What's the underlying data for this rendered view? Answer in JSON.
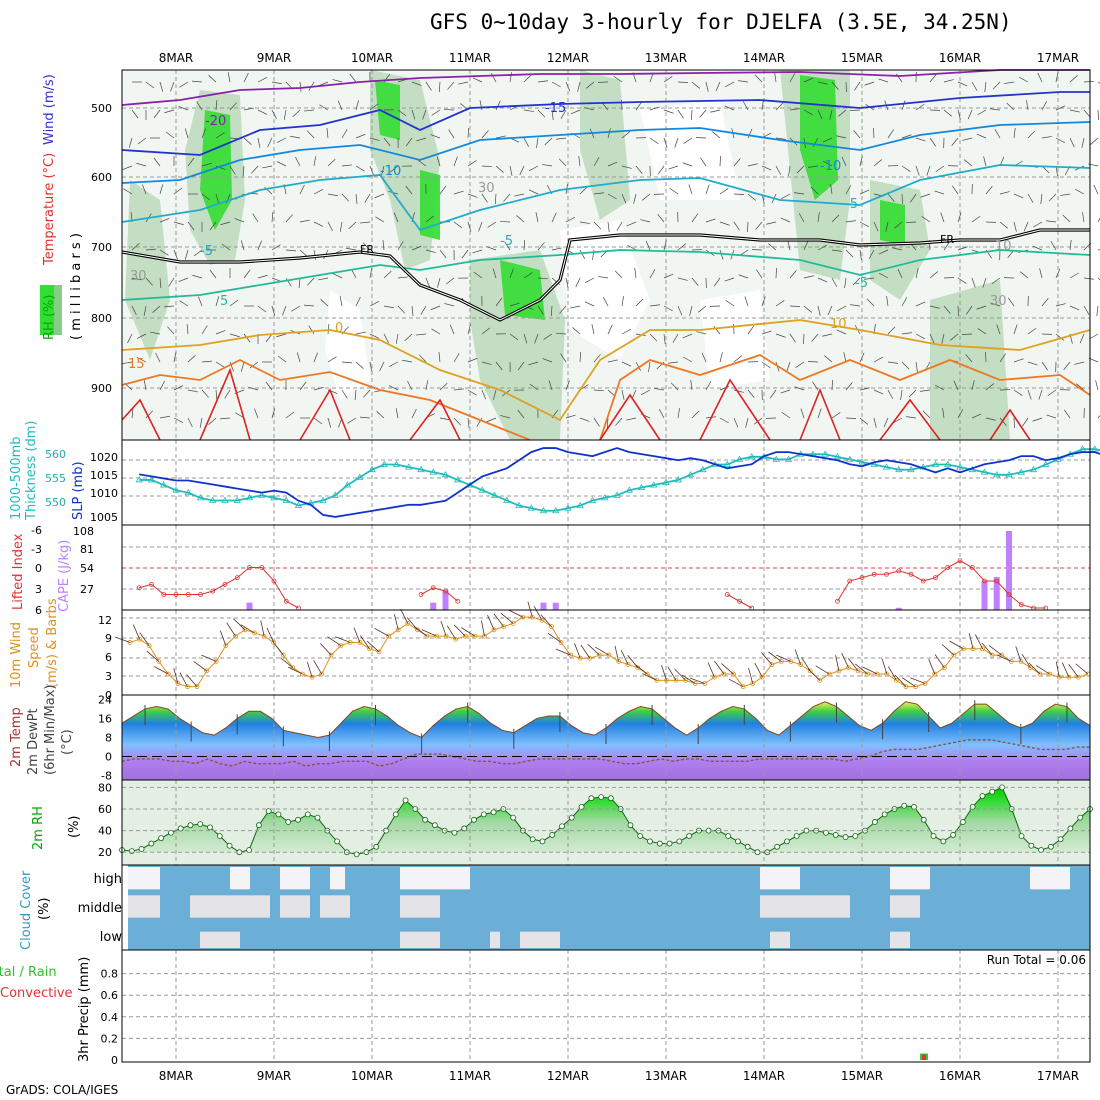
{
  "title": "GFS 0~10day 3-hourly for DJELFA (3.5E, 34.25N)",
  "footer": "GrADS: COLA/IGES",
  "colors": {
    "rh_green": "#00dd00",
    "temperature_label": "#e03030",
    "wind_label": "#3333cc",
    "thickness": "#22bbbb",
    "slp": "#1133cc",
    "lifted_index": "#dd3333",
    "cape": "#c080ff",
    "wind_speed": "#e09020",
    "cloud_blue": "#6baed6",
    "precip_rain": "#33cc33",
    "precip_convective": "#dd3333"
  },
  "x_axis": {
    "top_dates": [
      "8MAR",
      "9MAR",
      "10MAR",
      "11MAR",
      "12MAR",
      "13MAR",
      "14MAR",
      "15MAR",
      "16MAR",
      "17MAR"
    ],
    "bottom_dates": [
      "8MAR",
      "9MAR",
      "10MAR",
      "11MAR",
      "12MAR",
      "13MAR",
      "14MAR",
      "15MAR",
      "16MAR",
      "17MAR"
    ]
  },
  "panels": {
    "upper_air": {
      "ylabel_wind": "Wind (m/s)",
      "ylabel_temp": "Temperature (°C)",
      "ylabel_rh": "RH (%)",
      "ylabel_pressure": "( m i l l i b a r s )",
      "yticks": [
        "500",
        "600",
        "700",
        "800",
        "900"
      ],
      "freezing_label": "FR",
      "contour_labels": [
        "-20",
        "-15",
        "-10",
        "-10",
        "-5",
        "-5",
        "-5",
        "-5",
        "5",
        "0",
        "10",
        "15",
        "30",
        "30",
        "10",
        "30"
      ]
    },
    "thickness_slp": {
      "ylabel_thickness": "Thickness (dm)",
      "ylabel_thickness2": "1000-500mb",
      "ylabel_slp": "SLP (mb)",
      "left_ticks": [
        "560",
        "555",
        "550"
      ],
      "right_ticks": [
        "1020",
        "1015",
        "1010",
        "1005"
      ]
    },
    "li_cape": {
      "ylabel_li": "Lifted Index",
      "ylabel_cape": "CAPE (J/kg)",
      "left_ticks": [
        "-6",
        "-3",
        "0",
        "3",
        "6"
      ],
      "right_ticks": [
        "108",
        "81",
        "54",
        "27"
      ]
    },
    "wind10m": {
      "ylabel1": "10m Wind",
      "ylabel2": "Speed",
      "ylabel3": "(m/s) & Barbs",
      "ticks": [
        "12",
        "9",
        "6",
        "3",
        "0"
      ]
    },
    "temp2m": {
      "ylabel1": "2m Temp",
      "ylabel2": "2m DewPt",
      "ylabel3": "(6hr Min/Max)",
      "ylabel4": "(°C)",
      "ticks": [
        "24",
        "16",
        "8",
        "0",
        "-8"
      ]
    },
    "rh2m": {
      "ylabel1": "2m RH",
      "ylabel2": "(%)",
      "ticks": [
        "80",
        "60",
        "40",
        "20"
      ]
    },
    "cloud": {
      "ylabel1": "Cloud Cover",
      "ylabel2": "(%)",
      "levels": [
        "high",
        "middle",
        "low"
      ]
    },
    "precip": {
      "ylabel1": "3hr Precip (mm)",
      "ylabel2": "Total / Rain",
      "ylabel3": "Convective",
      "ticks": [
        "0.8",
        "0.6",
        "0.4",
        "0.2",
        "0"
      ],
      "run_total": "Run Total = 0.06"
    }
  },
  "chart_data": [
    {
      "type": "line",
      "title": "1000-500mb Thickness (dm) / SLP (mb)",
      "x_start": "7MAR 15Z",
      "x_step_hours": 3,
      "series": [
        {
          "name": "SLP (mb)",
          "axis": "right",
          "ylim": [
            1004,
            1023
          ],
          "values": [
            1015.5,
            1015,
            1014.5,
            1014,
            1014,
            1013.5,
            1013,
            1012.5,
            1012,
            1011.5,
            1011,
            1011.5,
            1011,
            1009,
            1008,
            1005.5,
            1005,
            1005.5,
            1006,
            1006.5,
            1007,
            1007.5,
            1008,
            1008,
            1008.5,
            1009,
            1011,
            1013,
            1015,
            1016,
            1017,
            1019,
            1021,
            1022,
            1022,
            1021,
            1020.5,
            1020,
            1021,
            1022,
            1021,
            1020.5,
            1020,
            1019.5,
            1019,
            1019.5,
            1019,
            1018,
            1017,
            1017.5,
            1018,
            1020,
            1021,
            1021,
            1020.5,
            1020,
            1019.5,
            1019,
            1018,
            1017.5,
            1018.5,
            1019,
            1018.5,
            1018,
            1017,
            1016,
            1017,
            1016,
            1017,
            1018,
            1018.5,
            1019,
            1020,
            1020,
            1019,
            1019.5,
            1020.5,
            1021,
            1021,
            1020,
            1020.5
          ]
        },
        {
          "name": "Thickness (dm)",
          "axis": "left",
          "ylim": [
            547,
            562
          ],
          "values": [
            555,
            555,
            554,
            553,
            552.5,
            551.5,
            551,
            551,
            551,
            551.5,
            552,
            551.5,
            551,
            550,
            550.5,
            551,
            552,
            554,
            555.5,
            557,
            558,
            558,
            557.5,
            557,
            556.5,
            556,
            555,
            554,
            553,
            552,
            551,
            550,
            549.5,
            549,
            549,
            549.5,
            550,
            551,
            551.5,
            552,
            553,
            553.5,
            554,
            554.5,
            555,
            556,
            557,
            558,
            558,
            559,
            559.5,
            559.5,
            559,
            559,
            560,
            560,
            560,
            559.5,
            559,
            558.5,
            558,
            557.5,
            557,
            557,
            557.5,
            558,
            558,
            557.5,
            557,
            556.5,
            556,
            556,
            556.5,
            557,
            558,
            559,
            560,
            561,
            561,
            560.5,
            560,
            560
          ]
        }
      ]
    },
    {
      "type": "line",
      "title": "Lifted Index / CAPE (J/kg)",
      "series": [
        {
          "name": "Lifted Index",
          "ylim": [
            6,
            -6
          ],
          "values": [
            3,
            2.5,
            4,
            4,
            4,
            4,
            3.5,
            2.5,
            1.5,
            0,
            0,
            2,
            5,
            6,
            null,
            null,
            null,
            null,
            null,
            null,
            null,
            null,
            null,
            4,
            3,
            3.5,
            5,
            null,
            null,
            null,
            null,
            null,
            null,
            null,
            null,
            null,
            null,
            null,
            null,
            null,
            null,
            null,
            null,
            null,
            null,
            null,
            null,
            null,
            4,
            5,
            6,
            null,
            null,
            null,
            null,
            null,
            null,
            5,
            2,
            1.5,
            1,
            1,
            0.5,
            1,
            2,
            1.5,
            0,
            -1,
            0,
            2,
            2,
            4,
            5.5,
            6,
            6,
            null,
            null,
            null,
            null,
            null,
            null
          ]
        },
        {
          "name": "CAPE (J/kg)",
          "type": "bar",
          "ylim": [
            0,
            108
          ],
          "values": [
            0,
            0,
            0,
            0,
            0,
            0,
            0,
            0,
            0,
            10,
            0,
            0,
            0,
            0,
            0,
            0,
            0,
            0,
            0,
            0,
            0,
            0,
            0,
            0,
            10,
            27,
            0,
            0,
            0,
            0,
            0,
            0,
            0,
            10,
            10,
            0,
            0,
            0,
            0,
            0,
            0,
            0,
            0,
            0,
            0,
            0,
            0,
            0,
            0,
            0,
            0,
            0,
            0,
            0,
            0,
            0,
            0,
            0,
            0,
            0,
            0,
            0,
            3,
            0,
            0,
            0,
            0,
            0,
            0,
            40,
            45,
            108,
            0,
            0,
            0,
            0,
            0,
            0,
            0,
            0,
            0
          ]
        }
      ]
    },
    {
      "type": "line",
      "title": "10m Wind Speed (m/s)",
      "ylim": [
        0,
        12.5
      ],
      "values": [
        8,
        8.5,
        7.5,
        5,
        3,
        1.5,
        1,
        1,
        3.5,
        5,
        7.5,
        9,
        10,
        9.5,
        9,
        8,
        6,
        4,
        3,
        2.5,
        3,
        6,
        7.5,
        8,
        8,
        7,
        6.5,
        9,
        10,
        11,
        10,
        9,
        9,
        9,
        8.5,
        9,
        9,
        9,
        10,
        10.5,
        11,
        12,
        12,
        11.5,
        10.5,
        8,
        6,
        5.5,
        5.5,
        6,
        6,
        5,
        4.5,
        4,
        3,
        2,
        2,
        2,
        2,
        1.5,
        1.5,
        2.5,
        3,
        3,
        1,
        1.5,
        2.5,
        4.5,
        5,
        5,
        4.5,
        3.5,
        2,
        3,
        3.5,
        4,
        3.5,
        3,
        3,
        3,
        2,
        1,
        1,
        1.5,
        3,
        4,
        6,
        7,
        7,
        7,
        6,
        6,
        5,
        5,
        4,
        3,
        3,
        2.5,
        2.5,
        2.5,
        3
      ]
    },
    {
      "type": "area",
      "title": "2m Temp / DewPt (°C)",
      "ylim": [
        -9,
        25
      ],
      "series": [
        {
          "name": "2m Temp",
          "values": [
            14,
            17,
            20,
            21,
            20,
            16,
            13,
            10,
            9,
            12,
            16,
            19,
            19,
            16,
            11,
            10,
            9,
            8,
            9,
            14,
            19,
            21,
            20,
            17,
            13,
            10,
            8,
            13,
            17,
            20,
            21,
            18,
            14,
            11,
            10,
            13,
            16,
            17,
            17,
            13,
            10,
            9,
            12,
            16,
            19,
            21,
            20,
            16,
            12,
            9,
            12,
            16,
            19,
            21,
            20,
            16,
            11,
            9,
            13,
            17,
            21,
            23,
            21,
            17,
            13,
            11,
            14,
            19,
            23,
            22,
            17,
            12,
            14,
            18,
            22,
            22,
            18,
            14,
            12,
            14,
            19,
            22,
            21,
            16,
            13
          ]
        },
        {
          "name": "2m DewPt",
          "values": [
            -2,
            -1,
            -1,
            -1,
            -2,
            -2,
            -3,
            -1,
            -3,
            -4,
            -2,
            -3,
            -3,
            -3,
            -2,
            -4,
            -3,
            -3,
            -2,
            -2,
            -2,
            -4,
            -3,
            -1,
            1,
            1,
            1,
            0,
            -1,
            -2,
            -2,
            -3,
            -3,
            -2,
            -1,
            -1,
            -1,
            -1,
            -1,
            -1,
            -2,
            -3,
            -3,
            -2,
            -1,
            -2,
            -1,
            -1,
            -2,
            -2,
            -2,
            -2,
            -1,
            -1,
            -1,
            -1,
            -1,
            -1,
            -1,
            -2,
            -1,
            0,
            2,
            3,
            3,
            3,
            4,
            5,
            6,
            7,
            7,
            7,
            6,
            5,
            4,
            3,
            3,
            3,
            4,
            4
          ]
        }
      ]
    },
    {
      "type": "area",
      "title": "2m RH (%)",
      "ylim": [
        10,
        85
      ],
      "values": [
        22,
        21,
        23,
        28,
        33,
        38,
        42,
        45,
        46,
        43,
        35,
        26,
        20,
        22,
        45,
        58,
        55,
        48,
        50,
        55,
        52,
        40,
        30,
        20,
        18,
        20,
        25,
        40,
        55,
        68,
        60,
        50,
        45,
        40,
        38,
        42,
        50,
        55,
        57,
        60,
        52,
        40,
        32,
        30,
        36,
        44,
        52,
        62,
        70,
        71,
        70,
        60,
        45,
        35,
        30,
        28,
        28,
        30,
        35,
        40,
        40,
        40,
        35,
        30,
        25,
        20,
        20,
        25,
        30,
        35,
        40,
        40,
        38,
        36,
        34,
        35,
        40,
        48,
        55,
        60,
        63,
        62,
        50,
        35,
        30,
        36,
        48,
        62,
        72,
        76,
        80,
        60,
        35,
        26,
        22,
        25,
        32,
        42,
        52,
        60
      ]
    },
    {
      "type": "heatmap",
      "title": "Cloud Cover (%)",
      "rows": [
        "high",
        "middle",
        "low"
      ],
      "note": "blue = clear, white/grey = cloud"
    },
    {
      "type": "bar",
      "title": "3hr Precip (mm)",
      "ylim": [
        0,
        1.0
      ],
      "series": [
        {
          "name": "Total / Rain",
          "values": [
            {
              "x": "15MAR 15Z",
              "y": 0.06
            }
          ]
        },
        {
          "name": "Convective",
          "values": [
            {
              "x": "15MAR 15Z",
              "y": 0.05
            }
          ]
        }
      ],
      "run_total": "Run Total = 0.06"
    }
  ]
}
